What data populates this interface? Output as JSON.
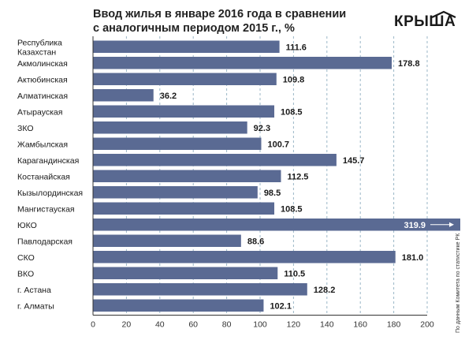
{
  "title_line1": "Ввод жилья в январе 2016 года в сравнении",
  "title_line2": "с аналогичным периодом 2015 г., %",
  "logo_text": "КРЫША",
  "source_note": "По данным Комитета по статистике РК",
  "colors": {
    "bar": "#5a6a93",
    "grid": "#9bb7c7",
    "axis": "#333333",
    "label_inside": "#ffffff"
  },
  "chart_data": {
    "type": "bar",
    "orientation": "horizontal",
    "categories": [
      "Республика Казахстан",
      "Акмолинская",
      "Актюбинская",
      "Алматинская",
      "Атырауская",
      "ЗКО",
      "Жамбылская",
      "Карагандинская",
      "Костанайская",
      "Кызылординская",
      "Мангистауская",
      "ЮКО",
      "Павлодарская",
      "СКО",
      "ВКО",
      "г. Астана",
      "г. Алматы"
    ],
    "values": [
      111.6,
      178.8,
      109.8,
      36.2,
      108.5,
      92.3,
      100.7,
      145.7,
      112.5,
      98.5,
      108.5,
      319.9,
      88.6,
      181.0,
      110.5,
      128.2,
      102.1
    ],
    "value_labels": [
      "111.6",
      "178.8",
      "109.8",
      "36.2",
      "108.5",
      "92.3",
      "100.7",
      "145.7",
      "112.5",
      "98.5",
      "108.5",
      "319.9",
      "88.6",
      "181.0",
      "110.5",
      "128.2",
      "102.1"
    ],
    "xlim": [
      0,
      200
    ],
    "x_ticks": [
      0,
      20,
      40,
      60,
      80,
      100,
      120,
      140,
      160,
      180,
      200
    ],
    "truncated": [
      "ЮКО"
    ],
    "grid": "vertical-dashed",
    "legend": "none"
  }
}
